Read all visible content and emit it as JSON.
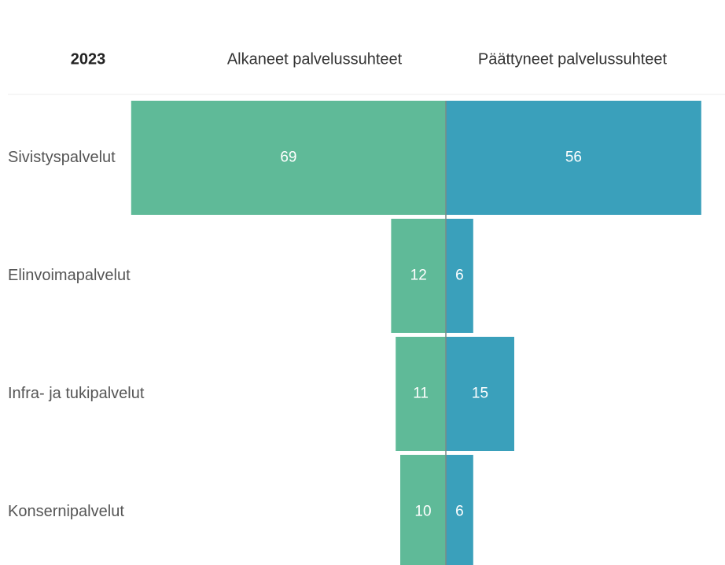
{
  "chart_data": {
    "type": "butterfly",
    "title": "2023",
    "categories": [
      "Sivistyspalvelut",
      "Elinvoimapalvelut",
      "Infra- ja tukipalvelut",
      "Konsernipalvelut"
    ],
    "series": [
      {
        "name": "Alkaneet palvelussuhteet",
        "color": "#5fba98",
        "values": [
          69,
          12,
          11,
          10
        ]
      },
      {
        "name": "Päättyneet palvelussuhteet",
        "color": "#3aa0bb",
        "values": [
          56,
          6,
          15,
          6
        ]
      }
    ]
  }
}
